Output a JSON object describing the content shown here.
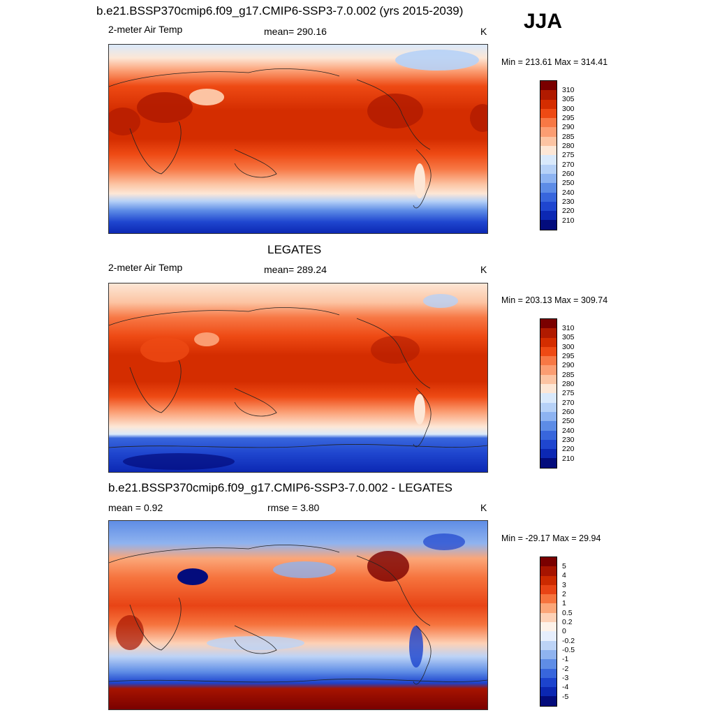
{
  "season": "JJA",
  "colors": {
    "temp_scale": [
      "#7a0000",
      "#b01a00",
      "#d42d00",
      "#ee4a14",
      "#f77845",
      "#fb9d72",
      "#fcc4a3",
      "#fde7d6",
      "#d9e9fb",
      "#b6d1f7",
      "#8db3f1",
      "#5d8ce6",
      "#3866dc",
      "#1f46cf",
      "#0c28b3",
      "#030c7c"
    ],
    "diff_scale": [
      "#7a0000",
      "#a61400",
      "#cc2a00",
      "#e84415",
      "#f6743e",
      "#fba678",
      "#fdd1b6",
      "#fdf2e9",
      "#e6eefc",
      "#bcd3f6",
      "#8fb3ef",
      "#5f8de6",
      "#3866dc",
      "#1c43cd",
      "#0b27b2",
      "#030c7c"
    ]
  },
  "panels": [
    {
      "id": "model",
      "title": "b.e21.BSSP370cmip6.f09_g17.CMIP6-SSP3-7.0.002 (yrs 2015-2039)",
      "left_label": "2-meter Air Temp",
      "center_label": "mean= 290.16",
      "right_label": "K",
      "minmax": "Min = 213.61 Max = 314.41",
      "colorbar_labels": [
        "310",
        "305",
        "300",
        "295",
        "290",
        "285",
        "280",
        "275",
        "270",
        "260",
        "250",
        "240",
        "230",
        "220",
        "210"
      ]
    },
    {
      "id": "obs",
      "title": "LEGATES",
      "left_label": "2-meter Air Temp",
      "center_label": "mean= 289.24",
      "right_label": "K",
      "minmax": "Min = 203.13 Max = 309.74",
      "colorbar_labels": [
        "310",
        "305",
        "300",
        "295",
        "290",
        "285",
        "280",
        "275",
        "270",
        "260",
        "250",
        "240",
        "230",
        "220",
        "210"
      ]
    },
    {
      "id": "diff",
      "title": "b.e21.BSSP370cmip6.f09_g17.CMIP6-SSP3-7.0.002 - LEGATES",
      "left_label": "mean =   0.92",
      "center_label": "rmse =   3.80",
      "right_label": "K",
      "minmax": "Min = -29.17 Max =  29.94",
      "colorbar_labels": [
        "5",
        "4",
        "3",
        "2",
        "1",
        "0.5",
        "0.2",
        "0",
        "-0.2",
        "-0.5",
        "-1",
        "-2",
        "-3",
        "-4",
        "-5"
      ]
    }
  ]
}
